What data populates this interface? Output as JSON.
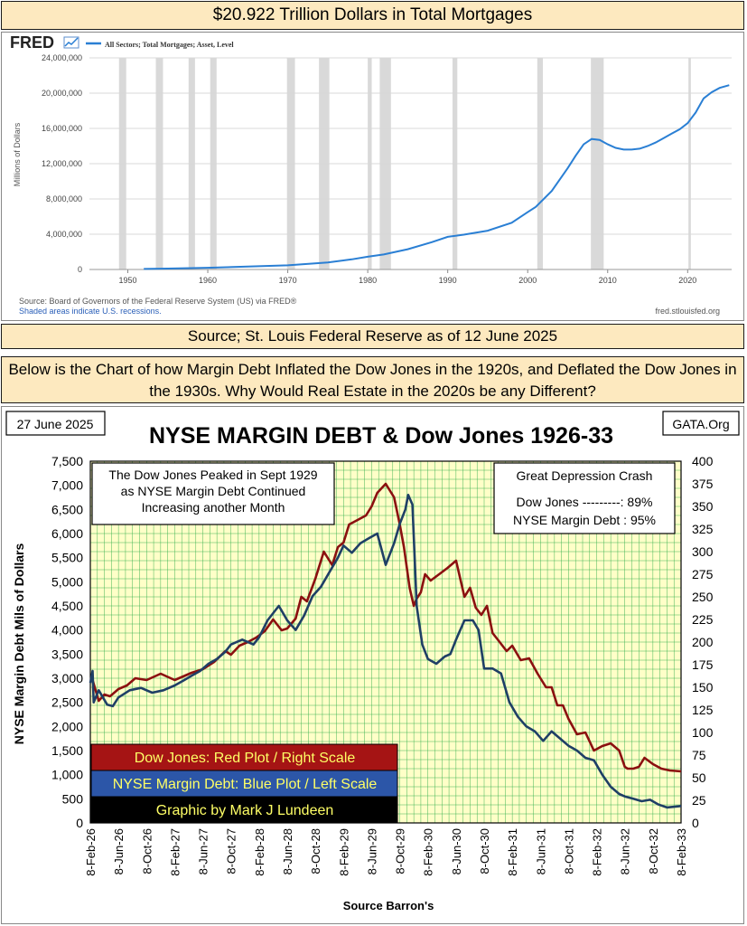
{
  "banners": {
    "top": "$20.922 Trillion Dollars in Total Mortgages",
    "source": "Source; St. Louis Federal Reserve  as of 12 June 2025",
    "question": "Below is the Chart of how Margin Debt Inflated the Dow Jones in the 1920s, and Deflated the Dow Jones in the 1930s. Why Would Real Estate in the 2020s be any Different?"
  },
  "fred": {
    "logo": "FRED",
    "legend": "All Sectors; Total Mortgages; Asset, Level",
    "ylabel": "Millions of Dollars",
    "source_note": "Source: Board of Governors of the Federal Reserve System (US) via FRED®",
    "shade_note": "Shaded areas indicate U.S. recessions.",
    "site": "fred.stlouisfed.org"
  },
  "lower": {
    "date_box": "27 June 2025",
    "title": "NYSE MARGIN DEBT & Dow Jones 1926-33",
    "site_box": "GATA.Org",
    "note_left": [
      "The Dow Jones Peaked in Sept 1929",
      "as NYSE Margin Debt Continued",
      "Increasing another Month"
    ],
    "note_right_title": "Great Depression Crash",
    "note_right_lines": [
      "Dow Jones ---------: 89%",
      "NYSE Margin Debt : 95%"
    ],
    "legend_red": "Dow Jones: Red Plot / Right Scale",
    "legend_blue": "NYSE Margin Debt: Blue Plot / Left Scale",
    "legend_black": "Graphic by Mark J Lundeen",
    "ylabel_left": "NYSE Margin Debt Mils of Dollars",
    "xlabel": "Source Barron's"
  },
  "colors": {
    "fred_line": "#2a7fd4",
    "recession": "#d9d9d9",
    "dow": "#8b1010",
    "margin": "#1f3f66",
    "plot_bg": "#ffffc8",
    "legend_red_bg": "#a51414",
    "legend_blue_bg": "#2c56a8",
    "legend_black_bg": "#000000",
    "legend_text": "#ffff66"
  },
  "chart_data": [
    {
      "type": "line",
      "series": [
        {
          "name": "All Sectors; Total Mortgages; Asset, Level",
          "x": [
            1952,
            1955,
            1960,
            1965,
            1970,
            1975,
            1978,
            1980,
            1982,
            1985,
            1988,
            1990,
            1992,
            1995,
            1998,
            2000,
            2001,
            2003,
            2005,
            2006,
            2007,
            2008,
            2009,
            2010,
            2011,
            2012,
            2013,
            2014,
            2015,
            2016,
            2017,
            2018,
            2019,
            2020,
            2021,
            2022,
            2023,
            2024,
            2025.2
          ],
          "y": [
            60000,
            100000,
            200000,
            330000,
            470000,
            800000,
            1150000,
            1450000,
            1700000,
            2300000,
            3100000,
            3700000,
            3950000,
            4400000,
            5300000,
            6500000,
            7100000,
            8900000,
            11500000,
            12900000,
            14200000,
            14800000,
            14700000,
            14200000,
            13800000,
            13600000,
            13600000,
            13700000,
            14000000,
            14400000,
            14900000,
            15400000,
            15900000,
            16600000,
            17800000,
            19400000,
            20100000,
            20600000,
            20900000
          ]
        }
      ],
      "x_ticks": [
        1950,
        1960,
        1970,
        1980,
        1990,
        2000,
        2010,
        2020
      ],
      "y_ticks": [
        0,
        4000000,
        8000000,
        12000000,
        16000000,
        20000000,
        24000000
      ],
      "y_tick_labels": [
        "0",
        "4,000,000",
        "8,000,000",
        "12,000,000",
        "16,000,000",
        "20,000,000",
        "24,000,000"
      ],
      "xlim": [
        1945.2,
        2025.5
      ],
      "ylim": [
        0,
        24000000
      ],
      "recessions": [
        [
          1948.9,
          1949.8
        ],
        [
          1953.5,
          1954.4
        ],
        [
          1957.6,
          1958.4
        ],
        [
          1960.3,
          1961.1
        ],
        [
          1969.9,
          1970.9
        ],
        [
          1973.9,
          1975.2
        ],
        [
          1980.0,
          1980.5
        ],
        [
          1981.5,
          1982.9
        ],
        [
          1990.6,
          1991.2
        ],
        [
          2001.2,
          2001.9
        ],
        [
          2007.9,
          2009.5
        ],
        [
          2020.1,
          2020.4
        ]
      ],
      "grid": true
    },
    {
      "type": "line",
      "title": "NYSE MARGIN DEBT & Dow Jones 1926-33",
      "xlabel": "Source Barron's",
      "ylabel": "NYSE Margin Debt Mils of Dollars",
      "categories": [
        "8-Feb-26",
        "8-Jun-26",
        "8-Oct-26",
        "8-Feb-27",
        "8-Jun-27",
        "8-Oct-27",
        "8-Feb-28",
        "8-Jun-28",
        "8-Oct-28",
        "8-Feb-29",
        "8-Jun-29",
        "8-Oct-29",
        "8-Feb-30",
        "8-Jun-30",
        "8-Oct-30",
        "8-Feb-31",
        "8-Jun-31",
        "8-Oct-31",
        "8-Feb-32",
        "8-Jun-32",
        "8-Oct-32",
        "8-Feb-33"
      ],
      "y_left_ticks": [
        "0",
        "500",
        "1,000",
        "1,500",
        "2,000",
        "2,500",
        "3,000",
        "3,500",
        "4,000",
        "4,500",
        "5,000",
        "5,500",
        "6,000",
        "6,500",
        "7,000",
        "7,500"
      ],
      "y_right_ticks": [
        "0",
        "25",
        "50",
        "75",
        "100",
        "125",
        "150",
        "175",
        "200",
        "225",
        "250",
        "275",
        "300",
        "325",
        "350",
        "375",
        "400"
      ],
      "ylim_left": [
        0,
        7500
      ],
      "ylim_right": [
        0,
        400
      ],
      "series": [
        {
          "name": "Dow Jones",
          "axis": "right",
          "x": [
            0,
            0.08,
            0.3,
            0.5,
            0.7,
            1.0,
            1.3,
            1.6,
            2.0,
            2.5,
            3.0,
            3.3,
            3.6,
            4.0,
            4.4,
            4.8,
            5.0,
            5.3,
            5.6,
            5.9,
            6.2,
            6.5,
            6.8,
            7.0,
            7.3,
            7.5,
            7.7,
            8.0,
            8.3,
            8.6,
            8.8,
            9.0,
            9.2,
            9.5,
            9.8,
            10.0,
            10.2,
            10.5,
            10.8,
            11.0,
            11.15,
            11.35,
            11.5,
            11.6,
            11.75,
            11.9,
            12.1,
            12.4,
            12.7,
            13.0,
            13.3,
            13.5,
            13.7,
            13.9,
            14.1,
            14.3,
            14.5,
            14.8,
            15.0,
            15.3,
            15.6,
            15.9,
            16.2,
            16.4,
            16.6,
            16.8,
            17.0,
            17.3,
            17.6,
            17.9,
            18.2,
            18.5,
            18.8,
            19.0,
            19.1,
            19.3,
            19.5,
            19.7,
            20.0,
            20.3,
            20.6,
            21.0
          ],
          "y": [
            160,
            158,
            135,
            142,
            140,
            148,
            152,
            160,
            158,
            165,
            158,
            162,
            166,
            170,
            178,
            190,
            186,
            196,
            200,
            205,
            212,
            225,
            213,
            215,
            226,
            250,
            245,
            270,
            300,
            285,
            305,
            310,
            330,
            335,
            340,
            350,
            365,
            375,
            360,
            330,
            305,
            260,
            240,
            248,
            255,
            275,
            268,
            275,
            282,
            290,
            250,
            260,
            238,
            230,
            240,
            210,
            202,
            190,
            196,
            180,
            182,
            165,
            150,
            150,
            130,
            130,
            115,
            98,
            100,
            80,
            85,
            88,
            80,
            62,
            60,
            60,
            62,
            72,
            65,
            60,
            58,
            57
          ]
        },
        {
          "name": "NYSE Margin Debt",
          "axis": "left",
          "x": [
            0,
            0.08,
            0.12,
            0.3,
            0.6,
            0.8,
            1.0,
            1.4,
            1.8,
            2.2,
            2.6,
            3.0,
            3.3,
            3.6,
            3.9,
            4.2,
            4.5,
            4.8,
            5.0,
            5.4,
            5.8,
            6.0,
            6.3,
            6.7,
            7.0,
            7.3,
            7.6,
            7.9,
            8.2,
            8.5,
            8.8,
            9.0,
            9.3,
            9.6,
            9.9,
            10.2,
            10.5,
            10.8,
            11.0,
            11.2,
            11.3,
            11.45,
            11.6,
            11.8,
            12.0,
            12.3,
            12.6,
            12.8,
            13.0,
            13.3,
            13.6,
            13.8,
            14.0,
            14.3,
            14.6,
            14.9,
            15.2,
            15.5,
            15.8,
            16.1,
            16.4,
            16.7,
            17.0,
            17.3,
            17.6,
            17.9,
            18.2,
            18.5,
            18.8,
            19.0,
            19.3,
            19.6,
            19.9,
            20.2,
            20.5,
            21.0
          ],
          "y": [
            2900,
            3150,
            2500,
            2750,
            2450,
            2420,
            2600,
            2750,
            2800,
            2700,
            2750,
            2850,
            2950,
            3050,
            3150,
            3300,
            3400,
            3550,
            3700,
            3800,
            3700,
            3850,
            4200,
            4500,
            4200,
            4000,
            4300,
            4700,
            4900,
            5200,
            5500,
            5750,
            5600,
            5800,
            5900,
            6000,
            5350,
            5800,
            6200,
            6500,
            6800,
            6600,
            4500,
            3700,
            3400,
            3300,
            3450,
            3500,
            3800,
            4200,
            4200,
            4000,
            3200,
            3200,
            3100,
            2500,
            2200,
            2000,
            1900,
            1700,
            1900,
            1750,
            1600,
            1500,
            1350,
            1300,
            1000,
            750,
            600,
            550,
            500,
            450,
            480,
            380,
            320,
            350
          ]
        }
      ],
      "grid": true
    }
  ]
}
